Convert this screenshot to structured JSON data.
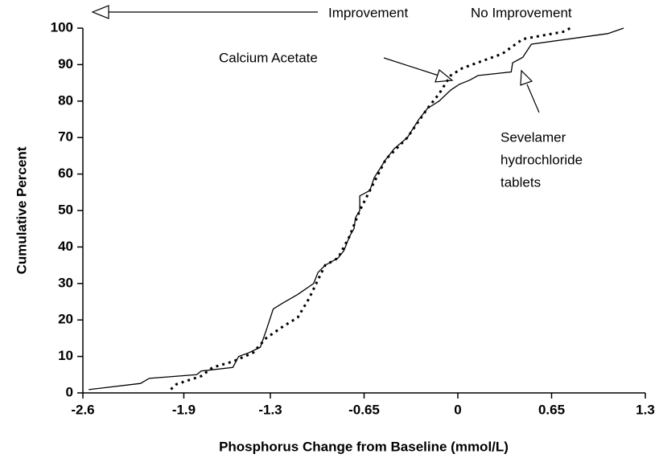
{
  "chart_data": {
    "type": "line",
    "xlabel": "Phosphorus Change from Baseline (mmol/L)",
    "ylabel": "Cumulative Percent",
    "xlim": [
      -2.6,
      1.3
    ],
    "ylim": [
      0,
      100
    ],
    "xticks": [
      -2.6,
      -1.9,
      -1.3,
      -0.65,
      0,
      0.65,
      1.3
    ],
    "yticks": [
      0,
      10,
      20,
      30,
      40,
      50,
      60,
      70,
      80,
      90,
      100
    ],
    "annotations": {
      "improvement": "Improvement",
      "no_improvement": "No Improvement",
      "calcium": "Calcium Acetate",
      "sevelamer": [
        "Sevelamer",
        "hydrochloride",
        "tablets"
      ]
    },
    "series": [
      {
        "color": "#000000",
        "style": "solid",
        "x": [
          -2.56,
          -2.2,
          -2.14,
          -1.81,
          -1.78,
          -1.56,
          -1.52,
          -1.45,
          -1.37,
          -1.33,
          -1.28,
          -1.22,
          -1.11,
          -1.0,
          -0.97,
          -0.92,
          -0.83,
          -0.79,
          -0.75,
          -0.72,
          -0.71,
          -0.68,
          -0.68,
          -0.61,
          -0.58,
          -0.5,
          -0.44,
          -0.35,
          -0.27,
          -0.21,
          -0.13,
          -0.05,
          0.01,
          0.08,
          0.14,
          0.37,
          0.38,
          0.45,
          0.51,
          1.04,
          1.15
        ],
        "values": [
          0.9,
          2.6,
          4,
          5,
          6,
          7,
          10,
          11,
          12.5,
          17,
          23,
          24.5,
          27,
          30,
          33,
          35,
          37,
          39,
          43,
          45,
          48,
          50,
          54,
          55.5,
          59,
          64,
          67,
          70,
          75,
          78,
          80,
          83,
          84.6,
          85.7,
          87,
          88,
          90.5,
          92,
          95.6,
          98.5,
          100
        ]
      },
      {
        "color": "#000000",
        "style": "dotted",
        "x": [
          -1.99,
          -1.95,
          -1.78,
          -1.7,
          -1.56,
          -1.42,
          -1.33,
          -1.22,
          -1.11,
          -1.03,
          -0.97,
          -0.92,
          -0.83,
          -0.75,
          -0.68,
          -0.61,
          -0.5,
          -0.35,
          -0.21,
          -0.13,
          -0.05,
          0.03,
          0.17,
          0.31,
          0.45,
          0.73,
          0.78
        ],
        "values": [
          1,
          2.4,
          4.6,
          7,
          8.6,
          11,
          15,
          18,
          20.7,
          26,
          31,
          35,
          37,
          43,
          50,
          55.5,
          64,
          70,
          78,
          82,
          87,
          89,
          91,
          93,
          97,
          99,
          100
        ]
      }
    ]
  }
}
